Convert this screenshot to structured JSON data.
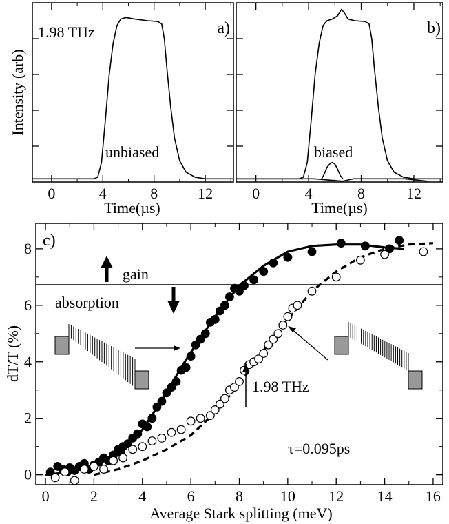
{
  "chart_data": [
    {
      "id": "a",
      "type": "line",
      "panel_label": "a)",
      "annotation": "1.98 THz",
      "curve_label": "unbiased",
      "xlabel": "Time(µs)",
      "ylabel": "Intensity (arb)",
      "xlim": [
        -1.5,
        14.2
      ],
      "ylim": [
        0,
        1.1
      ],
      "xticks": [
        0,
        4,
        8,
        12
      ],
      "xtick_labels": [
        "0",
        "4",
        "8",
        "12"
      ],
      "series": [
        {
          "style": "solid",
          "x": [
            -1.5,
            3.3,
            3.6,
            3.9,
            4.2,
            4.5,
            4.8,
            5.1,
            5.4,
            5.8,
            6.5,
            7.5,
            8.3,
            8.6,
            8.8,
            9.0,
            9.3,
            9.6,
            10.0,
            10.5,
            11.2,
            12.0,
            14.2
          ],
          "y": [
            0.02,
            0.02,
            0.03,
            0.12,
            0.38,
            0.66,
            0.85,
            0.96,
            1.0,
            1.01,
            1.0,
            0.99,
            0.985,
            0.97,
            0.88,
            0.7,
            0.46,
            0.27,
            0.13,
            0.06,
            0.03,
            0.02,
            0.02
          ]
        }
      ]
    },
    {
      "id": "b",
      "type": "line",
      "panel_label": "b)",
      "curve_label": "biased",
      "xlabel": "Time(µs)",
      "xlim": [
        -1.5,
        14.2
      ],
      "ylim": [
        0,
        1.1
      ],
      "xticks": [
        0,
        4,
        8,
        12
      ],
      "xtick_labels": [
        "0",
        "4",
        "8",
        "12"
      ],
      "series": [
        {
          "style": "solid",
          "x": [
            -1.5,
            3.3,
            3.6,
            3.9,
            4.2,
            4.5,
            4.8,
            5.1,
            5.4,
            5.8,
            6.2,
            6.5,
            6.7,
            7.0,
            7.5,
            8.3,
            8.6,
            8.8,
            9.0,
            9.3,
            9.6,
            10.0,
            10.5,
            11.2,
            12.0,
            14.2
          ],
          "y": [
            0.02,
            0.02,
            0.03,
            0.12,
            0.38,
            0.66,
            0.85,
            0.96,
            0.99,
            1.0,
            1.02,
            1.06,
            1.04,
            1.0,
            0.99,
            0.985,
            0.97,
            0.88,
            0.7,
            0.46,
            0.27,
            0.13,
            0.06,
            0.03,
            0.02,
            0.02
          ]
        },
        {
          "style": "solid",
          "x": [
            5.0,
            5.2,
            5.4,
            5.6,
            5.8,
            6.0,
            6.2,
            6.4,
            6.6
          ],
          "y": [
            0.02,
            0.05,
            0.09,
            0.11,
            0.12,
            0.11,
            0.08,
            0.04,
            0.02
          ]
        },
        {
          "style": "solid",
          "x": [
            -1.5,
            4.4,
            6.6,
            7.4,
            11.3,
            13.0
          ],
          "y": [
            0.02,
            0.02,
            0.005,
            0.02,
            0.02,
            0.005
          ]
        }
      ]
    },
    {
      "id": "c",
      "type": "scatter",
      "panel_label": "c)",
      "xlabel": "Average Stark splitting (meV)",
      "ylabel": "dT/T (%)",
      "xlim": [
        -0.4,
        16.4
      ],
      "ylim": [
        -0.35,
        8.9
      ],
      "xticks": [
        0,
        2,
        4,
        6,
        8,
        10,
        12,
        14,
        16
      ],
      "xtick_labels": [
        "0",
        "2",
        "4",
        "6",
        "8",
        "10",
        "12",
        "14",
        "16"
      ],
      "yticks": [
        0,
        2,
        4,
        6,
        8
      ],
      "ytick_labels": [
        "0",
        "2",
        "4",
        "6",
        "8"
      ],
      "hline": 6.5,
      "annotations": {
        "gain": "gain",
        "absorption": "absorption",
        "freq": "1.98 THz",
        "tau": "τ=0.095ps"
      },
      "series": [
        {
          "marker": "filled-circle",
          "x": [
            0.2,
            0.5,
            0.7,
            0.9,
            1.0,
            1.2,
            1.4,
            1.6,
            1.8,
            2.0,
            2.2,
            2.4,
            2.6,
            2.8,
            3.0,
            3.1,
            3.2,
            3.4,
            3.6,
            3.8,
            4.0,
            4.2,
            4.4,
            4.6,
            4.8,
            5.0,
            5.2,
            5.4,
            5.6,
            5.8,
            6.0,
            6.2,
            6.4,
            6.6,
            6.8,
            7.0,
            7.2,
            7.4,
            7.6,
            7.8,
            8.0,
            8.2,
            8.6,
            9.0,
            9.4,
            10.0,
            11.0,
            12.2,
            13.2,
            14.2,
            14.6
          ],
          "y": [
            0.1,
            0.3,
            0.2,
            0.1,
            0.25,
            0.15,
            0.3,
            0.4,
            0.2,
            0.35,
            0.45,
            0.6,
            0.5,
            0.7,
            0.9,
            0.8,
            1.0,
            1.1,
            1.3,
            1.45,
            1.8,
            1.7,
            2.0,
            2.4,
            2.6,
            2.9,
            3.1,
            3.3,
            3.7,
            3.8,
            4.2,
            4.6,
            4.8,
            5.0,
            5.4,
            5.5,
            5.8,
            6.0,
            6.3,
            6.6,
            6.5,
            6.7,
            6.9,
            7.2,
            7.5,
            7.7,
            7.9,
            8.2,
            8.1,
            8.0,
            8.3
          ]
        },
        {
          "marker": "open-circle",
          "x": [
            0.4,
            0.8,
            1.2,
            1.6,
            2.0,
            2.4,
            2.8,
            3.2,
            3.6,
            4.0,
            4.4,
            4.8,
            5.2,
            5.6,
            6.0,
            6.4,
            6.8,
            7.0,
            7.2,
            7.4,
            7.6,
            7.8,
            8.0,
            8.2,
            8.4,
            8.6,
            8.8,
            9.0,
            9.2,
            9.4,
            9.6,
            9.8,
            10.0,
            10.2,
            10.4,
            11.0,
            12.0,
            13.0,
            14.0,
            15.6
          ],
          "y": [
            -0.1,
            0.1,
            -0.2,
            0.2,
            0.3,
            0.2,
            0.5,
            0.6,
            0.9,
            1.0,
            1.2,
            1.3,
            1.5,
            1.6,
            1.9,
            2.0,
            2.1,
            2.3,
            2.5,
            2.7,
            3.0,
            3.1,
            3.3,
            3.7,
            3.9,
            4.0,
            4.1,
            4.3,
            4.6,
            4.8,
            5.0,
            5.3,
            5.6,
            5.9,
            6.0,
            6.5,
            7.0,
            7.6,
            7.8,
            7.9
          ]
        },
        {
          "style": "solid",
          "x": [
            0.0,
            1.0,
            2.0,
            3.0,
            4.0,
            5.0,
            5.6,
            6.2,
            7.0,
            8.0,
            9.0,
            10.0,
            11.0,
            12.0,
            13.0,
            14.0,
            14.8
          ],
          "y": [
            0.0,
            0.1,
            0.3,
            0.75,
            1.6,
            2.9,
            3.8,
            4.6,
            5.6,
            6.7,
            7.4,
            7.9,
            8.1,
            8.15,
            8.15,
            8.05,
            8.0
          ]
        },
        {
          "style": "dashed",
          "x": [
            2.0,
            3.0,
            4.0,
            5.0,
            6.0,
            7.0,
            8.0,
            9.0,
            10.0,
            11.0,
            12.0,
            13.0,
            14.0,
            15.0,
            16.0
          ],
          "y": [
            0.0,
            0.2,
            0.5,
            0.9,
            1.4,
            2.2,
            3.2,
            4.4,
            5.5,
            6.5,
            7.2,
            7.7,
            8.0,
            8.15,
            8.2
          ]
        }
      ]
    }
  ]
}
